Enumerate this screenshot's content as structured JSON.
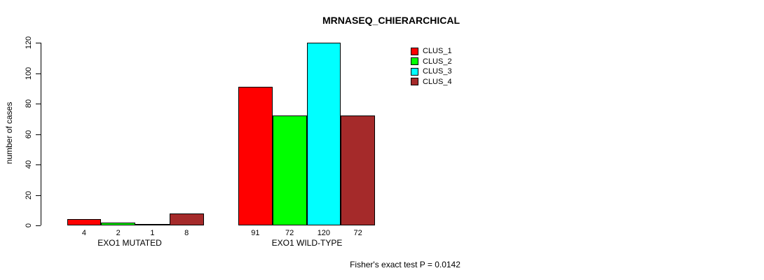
{
  "chart_data": {
    "type": "bar",
    "title": "MRNASEQ_CHIERARCHICAL",
    "xlabel": "",
    "ylabel": "number of cases",
    "ylim": [
      0,
      120
    ],
    "yticks": [
      0,
      20,
      40,
      60,
      80,
      100,
      120
    ],
    "grid": false,
    "legend_position": "top-right",
    "categories": [
      "EXO1 MUTATED",
      "EXO1 WILD-TYPE"
    ],
    "series": [
      {
        "name": "CLUS_1",
        "color": "#ff0000",
        "values": [
          4,
          91
        ]
      },
      {
        "name": "CLUS_2",
        "color": "#00ff00",
        "values": [
          2,
          72
        ]
      },
      {
        "name": "CLUS_3",
        "color": "#00ffff",
        "values": [
          1,
          120
        ]
      },
      {
        "name": "CLUS_4",
        "color": "#a52a2a",
        "values": [
          8,
          72
        ]
      }
    ],
    "bar_value_labels": [
      [
        "4",
        "2",
        "1",
        "8"
      ],
      [
        "91",
        "72",
        "120",
        "72"
      ]
    ],
    "annotation": "Fisher's exact test P = 0.0142",
    "text_color": "#000000",
    "background_color": "#ffffff"
  }
}
